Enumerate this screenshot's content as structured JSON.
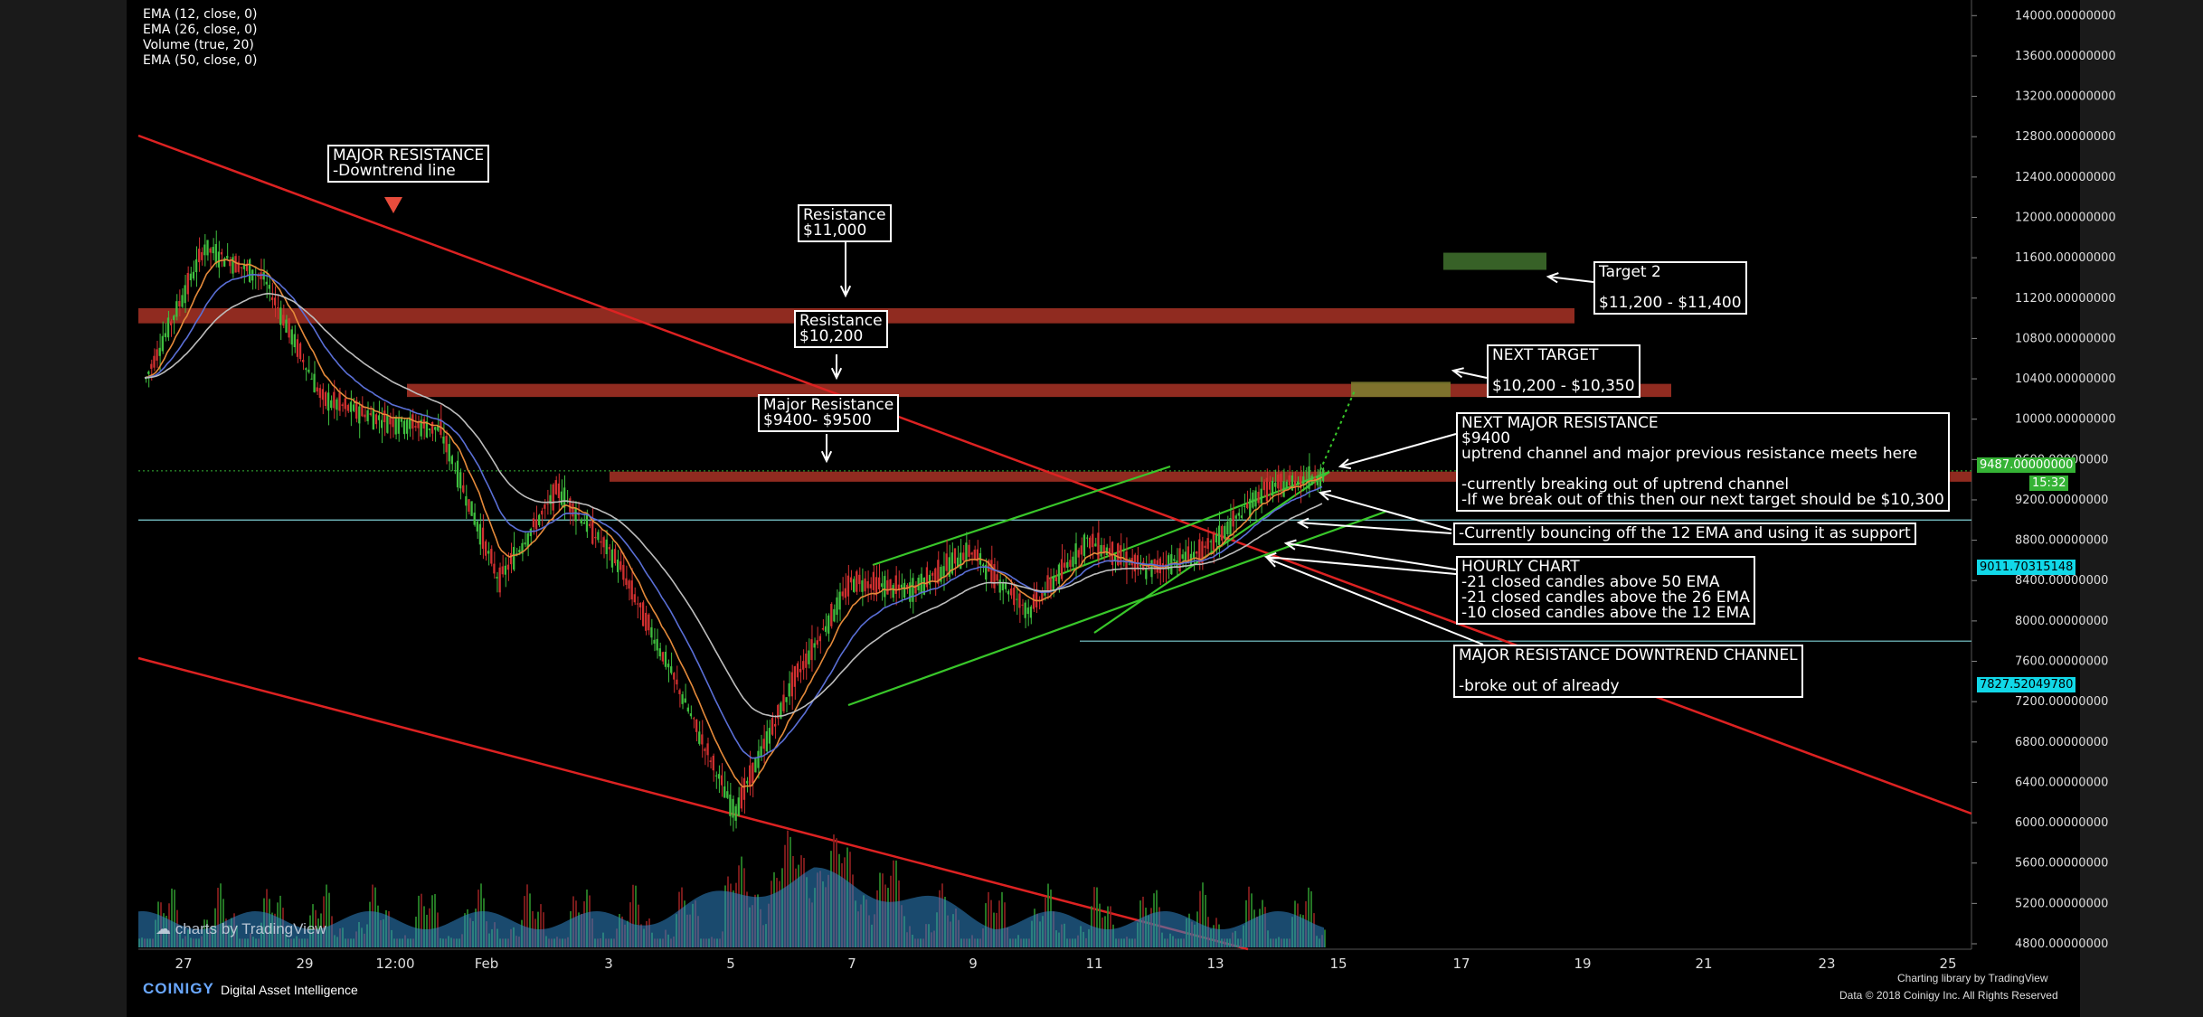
{
  "legend": [
    "EMA (12, close, 0)",
    "EMA (26, close, 0)",
    "Volume (true, 20)",
    "EMA (50, close, 0)"
  ],
  "annotations": {
    "major_resistance": "MAJOR RESISTANCE\n-Downtrend line",
    "res_11000": "Resistance\n$11,000",
    "res_10200": "Resistance\n$10,200",
    "res_9400": "Major Resistance\n$9400- $9500",
    "target2": "Target 2\n\n$11,200 - $11,400",
    "next_target": "NEXT TARGET\n\n$10,200 - $10,350",
    "next_major": "NEXT MAJOR RESISTANCE\n$9400\nuptrend channel and major previous resistance meets here\n\n-currently breaking out of uptrend channel\n-If we break out of this then our next target should be $10,300",
    "bouncing": "-Currently bouncing off the 12 EMA and using it as support",
    "hourly": "HOURLY CHART\n-21 closed candles above 50 EMA\n-21 closed candles above the 26 EMA\n-10 closed candles above the 12 EMA",
    "downtrend_channel": "MAJOR RESISTANCE DOWNTREND CHANNEL\n\n-broke out of already"
  },
  "price_tags": {
    "current": "9487.00000000",
    "countdown": "15:32",
    "level_a": "9011.70315148",
    "level_b": "7827.52049780"
  },
  "footer": {
    "watermark": "charts by TradingView",
    "brand": "COINIGY",
    "brand_sub": "Digital Asset Intelligence",
    "charting": "Charting library by  TradingView",
    "copyright": "Data © 2018  Coinigy Inc. All Rights Reserved"
  },
  "colors": {
    "up": "#3fbf3f",
    "down": "#d23030",
    "resistance": "#c0392b",
    "channel": "#39c72a",
    "ema12": "#e58a3a",
    "ema26": "#5a6fd6",
    "ema50": "#bdbdbd",
    "volume": "#2f86c8",
    "support": "#7fd1d6",
    "price_green": "#35b335",
    "price_cyan": "#11d8e8"
  },
  "chart_data": {
    "type": "candlestick",
    "title": "",
    "ylim": [
      4600,
      14000
    ],
    "y_ticks": [
      "4800.00000000",
      "5200.00000000",
      "5600.00000000",
      "6000.00000000",
      "6400.00000000",
      "6800.00000000",
      "7200.00000000",
      "7600.00000000",
      "8000.00000000",
      "8400.00000000",
      "8800.00000000",
      "9200.00000000",
      "9600.00000000",
      "10000.00000000",
      "10400.00000000",
      "10800.00000000",
      "11200.00000000",
      "11600.00000000",
      "12000.00000000",
      "12400.00000000",
      "12800.00000000",
      "13200.00000000",
      "13600.00000000",
      "14000.00000000"
    ],
    "x_ticks": [
      "27",
      "29",
      "12:00",
      "Feb",
      "3",
      "5",
      "7",
      "9",
      "11",
      "13",
      "15",
      "17",
      "19",
      "21",
      "23",
      "25"
    ],
    "price_path": [
      [
        "27",
        10400
      ],
      [
        "28",
        11700
      ],
      [
        "29",
        11400
      ],
      [
        "30",
        10200
      ],
      [
        "31",
        10000
      ],
      [
        "Feb",
        9900
      ],
      [
        "2",
        8400
      ],
      [
        "3",
        9300
      ],
      [
        "4",
        8600
      ],
      [
        "5",
        7400
      ],
      [
        "6",
        6100
      ],
      [
        "7",
        7400
      ],
      [
        "8",
        8400
      ],
      [
        "9",
        8300
      ],
      [
        "10",
        8700
      ],
      [
        "11",
        8100
      ],
      [
        "12",
        8800
      ],
      [
        "13",
        8500
      ],
      [
        "14",
        8700
      ],
      [
        "14.5",
        9300
      ],
      [
        "15",
        9450
      ]
    ],
    "resistance_levels": [
      11000,
      10300,
      9400
    ],
    "support_levels": [
      9000,
      7800
    ],
    "current_price": 9487
  }
}
